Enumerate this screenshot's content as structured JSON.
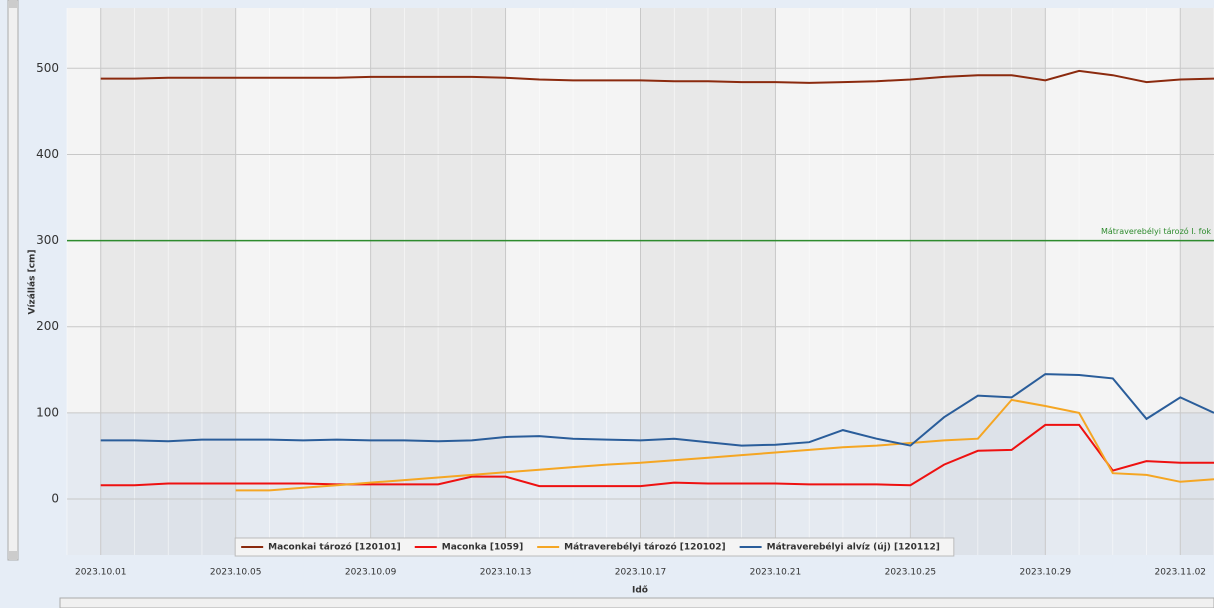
{
  "chart_data": {
    "type": "line",
    "x_label": "Idő",
    "y_label": "Vízállás [cm]",
    "x": [
      "2023.10.01",
      "2023.10.02",
      "2023.10.03",
      "2023.10.04",
      "2023.10.05",
      "2023.10.06",
      "2023.10.07",
      "2023.10.08",
      "2023.10.09",
      "2023.10.10",
      "2023.10.11",
      "2023.10.12",
      "2023.10.13",
      "2023.10.14",
      "2023.10.15",
      "2023.10.16",
      "2023.10.17",
      "2023.10.18",
      "2023.10.19",
      "2023.10.20",
      "2023.10.21",
      "2023.10.22",
      "2023.10.23",
      "2023.10.24",
      "2023.10.25",
      "2023.10.26",
      "2023.10.27",
      "2023.10.28",
      "2023.10.29",
      "2023.10.30",
      "2023.10.31",
      "2023.11.01",
      "2023.11.02",
      "2023.11.03"
    ],
    "series": [
      {
        "name": "Maconkai tározó [120101]",
        "color": "#8b2a0e",
        "values": [
          488,
          488,
          489,
          489,
          489,
          489,
          489,
          489,
          490,
          490,
          490,
          490,
          489,
          487,
          486,
          486,
          486,
          485,
          485,
          484,
          484,
          483,
          484,
          485,
          487,
          490,
          492,
          492,
          486,
          497,
          492,
          484,
          487,
          488
        ]
      },
      {
        "name": "Maconka [1059]",
        "color": "#ee1111",
        "values": [
          16,
          16,
          18,
          18,
          18,
          18,
          18,
          17,
          17,
          17,
          17,
          26,
          26,
          15,
          15,
          15,
          15,
          19,
          18,
          18,
          18,
          17,
          17,
          17,
          16,
          40,
          56,
          57,
          86,
          86,
          33,
          44,
          42,
          42
        ]
      },
      {
        "name": "Mátraverebélyi tározó [120102]",
        "color": "#f5a623",
        "values": [
          null,
          null,
          null,
          null,
          10,
          10,
          13,
          16,
          19,
          22,
          25,
          28,
          31,
          34,
          37,
          40,
          42,
          45,
          48,
          51,
          54,
          57,
          60,
          62,
          65,
          68,
          70,
          115,
          108,
          100,
          30,
          28,
          20,
          23
        ]
      },
      {
        "name": "Mátraverebélyi alvíz (új) [120112]",
        "color": "#2a5d9a",
        "values": [
          68,
          68,
          67,
          69,
          69,
          69,
          68,
          69,
          68,
          68,
          67,
          68,
          72,
          73,
          70,
          69,
          68,
          70,
          66,
          62,
          63,
          66,
          80,
          70,
          62,
          95,
          120,
          118,
          145,
          144,
          140,
          93,
          118,
          100
        ]
      }
    ],
    "reference_lines": [
      {
        "value": 300,
        "label": "Mátraverebélyi tározó I. fok",
        "color": "#2e8b2e"
      }
    ],
    "xlim": [
      "2023.09.30",
      "2023.11.03"
    ],
    "xticks": [
      "2023.10.01",
      "2023.10.05",
      "2023.10.09",
      "2023.10.13",
      "2023.10.17",
      "2023.10.21",
      "2023.10.25",
      "2023.10.29",
      "2023.11.02"
    ],
    "ylim": [
      -65,
      570
    ],
    "yticks": [
      0,
      100,
      200,
      300,
      400,
      500
    ],
    "grid": true,
    "legend": "bottom"
  }
}
